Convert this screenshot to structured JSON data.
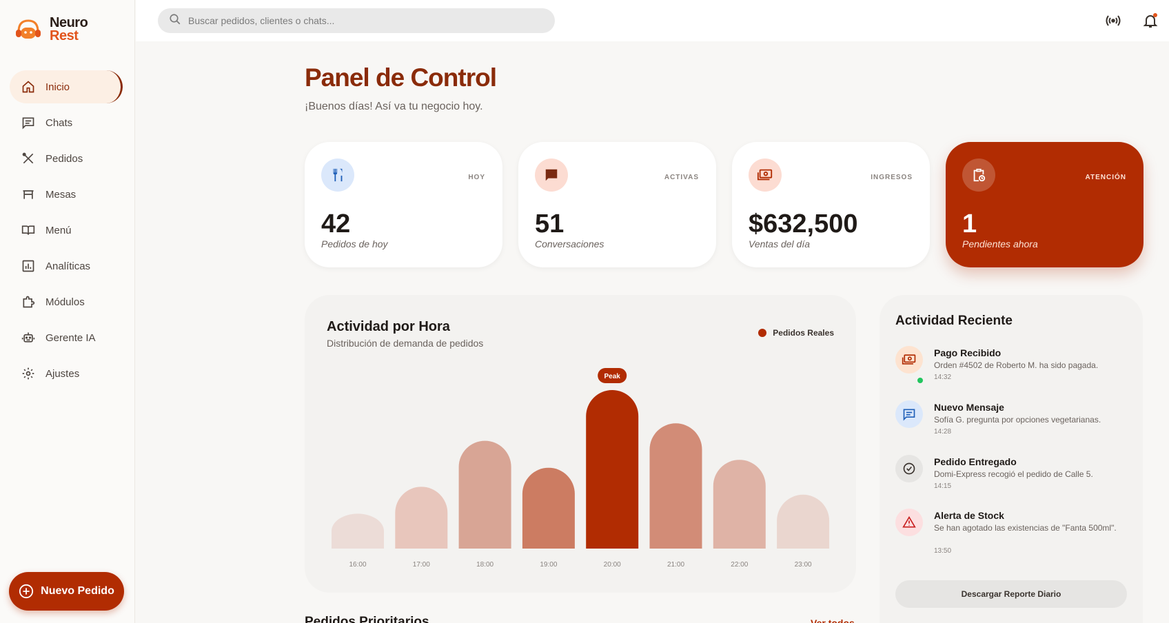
{
  "brand": {
    "line1": "Neuro",
    "line2": "Rest"
  },
  "sidebar": {
    "items": [
      {
        "label": "Inicio",
        "icon": "home-icon",
        "active": true
      },
      {
        "label": "Chats",
        "icon": "chat-icon"
      },
      {
        "label": "Pedidos",
        "icon": "utensils-icon"
      },
      {
        "label": "Mesas",
        "icon": "table-icon"
      },
      {
        "label": "Menú",
        "icon": "book-icon"
      },
      {
        "label": "Analíticas",
        "icon": "analytics-icon"
      },
      {
        "label": "Módulos",
        "icon": "puzzle-icon"
      },
      {
        "label": "Gerente IA",
        "icon": "robot-icon"
      },
      {
        "label": "Ajustes",
        "icon": "gear-icon"
      }
    ],
    "new_order": "Nuevo Pedido"
  },
  "topbar": {
    "search_placeholder": "Buscar pedidos, clientes o chats..."
  },
  "header": {
    "title": "Panel de Control",
    "subtitle": "¡Buenos días! Así va tu negocio hoy."
  },
  "stats": [
    {
      "tag": "HOY",
      "value": "42",
      "label": "Pedidos de hoy",
      "icon": "utensils-icon"
    },
    {
      "tag": "ACTIVAS",
      "value": "51",
      "label": "Conversaciones",
      "icon": "message-icon"
    },
    {
      "tag": "INGRESOS",
      "value": "$632,500",
      "label": "Ventas del día",
      "icon": "money-icon"
    },
    {
      "tag": "ATENCIÓN",
      "value": "1",
      "label": "Pendientes ahora",
      "icon": "clipboard-clock-icon"
    }
  ],
  "chart": {
    "title": "Actividad por Hora",
    "subtitle": "Distribución de demanda de pedidos",
    "peak_label": "Peak"
  },
  "chart_data": {
    "type": "bar",
    "categories": [
      "16:00",
      "17:00",
      "18:00",
      "19:00",
      "20:00",
      "21:00",
      "22:00",
      "23:00"
    ],
    "series": [
      {
        "name": "Pedidos Reales",
        "values": [
          22,
          39,
          68,
          51,
          100,
          79,
          56,
          34
        ]
      }
    ],
    "ylim": [
      0,
      100
    ],
    "legend": "top-right",
    "grid": false,
    "colors": [
      "#ecdcd7",
      "#e8c6bc",
      "#d8a595",
      "#cc7c62",
      "#b12c02",
      "#d28c77",
      "#dfb3a6",
      "#ead6cf"
    ]
  },
  "recent": {
    "title": "Actividad Reciente",
    "items": [
      {
        "title": "Pago Recibido",
        "desc": "Orden #4502 de Roberto M. ha sido pagada.",
        "time": "14:32",
        "icon": "money-icon"
      },
      {
        "title": "Nuevo Mensaje",
        "desc": "Sofía G. pregunta por opciones vegetarianas.",
        "time": "14:28",
        "icon": "message-icon"
      },
      {
        "title": "Pedido Entregado",
        "desc": "Domi-Express recogió el pedido de Calle 5.",
        "time": "14:15",
        "icon": "check-circle-icon"
      },
      {
        "title": "Alerta de Stock",
        "desc": "Se han agotado las existencias de \"Fanta 500ml\".",
        "time": "13:50",
        "icon": "warning-icon"
      }
    ],
    "download": "Descargar Reporte Diario"
  },
  "bottom": {
    "title": "Pedidos Prioritarios",
    "see_all": "Ver todos"
  }
}
